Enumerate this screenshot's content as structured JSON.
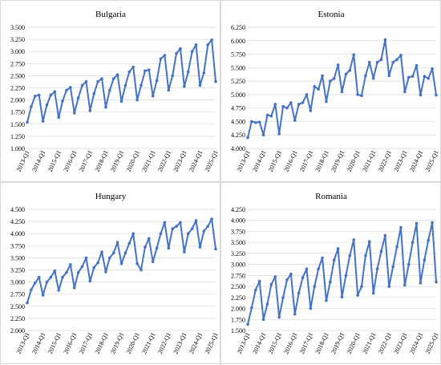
{
  "colors": {
    "line": "#4472C4",
    "grid": "#d9d9d9"
  },
  "chart_data": [
    {
      "type": "line",
      "title": "Bulgaria",
      "ylim": [
        1000,
        3500
      ],
      "yticks": [
        "1.000",
        "1.250",
        "1.500",
        "1.750",
        "2.000",
        "2.250",
        "2.500",
        "2.750",
        "3.000",
        "3.250",
        "3.500"
      ],
      "ytick_values": [
        1000,
        1250,
        1500,
        1750,
        2000,
        2250,
        2500,
        2750,
        3000,
        3250,
        3500
      ],
      "xticks": [
        "2013-Q1",
        "2014-Q1",
        "2015-Q1",
        "2016-Q1",
        "2017-Q1",
        "2018-Q1",
        "2019-Q1",
        "2020-Q1",
        "2021-Q1",
        "2022-Q1",
        "2023-Q1",
        "2024-Q1",
        "2025-Q1"
      ],
      "grid": true,
      "series": [
        {
          "values": [
            1540,
            1860,
            2080,
            2100,
            1560,
            1900,
            2100,
            2170,
            1640,
            1980,
            2200,
            2260,
            1730,
            2040,
            2300,
            2380,
            1780,
            2130,
            2380,
            2440,
            1850,
            2200,
            2440,
            2520,
            1970,
            2300,
            2580,
            2680,
            2000,
            2300,
            2600,
            2620,
            2080,
            2400,
            2850,
            2920,
            2200,
            2500,
            2960,
            3060,
            2280,
            2580,
            3000,
            3140,
            2300,
            2560,
            3140,
            3240,
            2380
          ]
        }
      ]
    },
    {
      "type": "line",
      "title": "Estonia",
      "ylim": [
        4000,
        6250
      ],
      "yticks": [
        "4.000",
        "4.250",
        "4.500",
        "4.750",
        "5.000",
        "5.250",
        "5.500",
        "5.750",
        "6.000",
        "6.250"
      ],
      "ytick_values": [
        4000,
        4250,
        4500,
        4750,
        5000,
        5250,
        5500,
        5750,
        6000,
        6250
      ],
      "xticks": [
        "2013-Q1",
        "2014-Q1",
        "2015-Q1",
        "2016-Q1",
        "2017-Q1",
        "2018-Q1",
        "2019-Q1",
        "2020-Q1",
        "2021-Q1",
        "2022-Q1",
        "2023-Q1",
        "2024-Q1",
        "2025-Q1"
      ],
      "grid": true,
      "series": [
        {
          "values": [
            4200,
            4500,
            4480,
            4490,
            4250,
            4620,
            4600,
            4820,
            4270,
            4780,
            4750,
            4850,
            4520,
            4820,
            4850,
            5000,
            4700,
            5150,
            5100,
            5350,
            4870,
            5250,
            5300,
            5550,
            5050,
            5380,
            5450,
            5740,
            5000,
            4980,
            5350,
            5600,
            5300,
            5600,
            5650,
            6020,
            5350,
            5600,
            5650,
            5730,
            5050,
            5320,
            5340,
            5540,
            4990,
            5340,
            5300,
            5480,
            4990
          ]
        }
      ]
    },
    {
      "type": "line",
      "title": "Hungary",
      "ylim": [
        2000,
        4500
      ],
      "yticks": [
        "2.000",
        "2.250",
        "2.500",
        "2.750",
        "3.000",
        "3.250",
        "3.500",
        "3.750",
        "4.000",
        "4.250",
        "4.500"
      ],
      "ytick_values": [
        2000,
        2250,
        2500,
        2750,
        3000,
        3250,
        3500,
        3750,
        4000,
        4250,
        4500
      ],
      "xticks": [
        "2013-Q1",
        "2014-Q1",
        "2015-Q1",
        "2016-Q1",
        "2017-Q1",
        "2018-Q1",
        "2019-Q1",
        "2020-Q1",
        "2021-Q1",
        "2022-Q1",
        "2023-Q1",
        "2024-Q1",
        "2025-Q1"
      ],
      "grid": true,
      "series": [
        {
          "values": [
            2570,
            2840,
            2980,
            3100,
            2730,
            3000,
            3100,
            3230,
            2830,
            3100,
            3200,
            3360,
            2880,
            3200,
            3320,
            3500,
            3020,
            3300,
            3400,
            3620,
            3210,
            3500,
            3600,
            3820,
            3380,
            3600,
            3800,
            4000,
            3380,
            3250,
            3720,
            3900,
            3420,
            3700,
            4000,
            4230,
            3700,
            4100,
            4150,
            4230,
            3620,
            4000,
            4100,
            4270,
            3720,
            4050,
            4150,
            4300,
            3680
          ]
        }
      ]
    },
    {
      "type": "line",
      "title": "Romania",
      "ylim": [
        1500,
        4250
      ],
      "yticks": [
        "1.500",
        "1.750",
        "2.000",
        "2.250",
        "2.500",
        "2.750",
        "3.000",
        "3.250",
        "3.500",
        "3.750",
        "4.000",
        "4.250"
      ],
      "ytick_values": [
        1500,
        1750,
        2000,
        2250,
        2500,
        2750,
        3000,
        3250,
        3500,
        3750,
        4000,
        4250
      ],
      "xticks": [
        "2013-Q1",
        "2014-Q1",
        "2015-Q1",
        "2016-Q1",
        "2017-Q1",
        "2018-Q1",
        "2019-Q1",
        "2020-Q1",
        "2021-Q1",
        "2022-Q1",
        "2023-Q1",
        "2024-Q1",
        "2025-Q1"
      ],
      "grid": true,
      "series": [
        {
          "values": [
            1640,
            2020,
            2420,
            2620,
            1750,
            2100,
            2550,
            2720,
            1800,
            2250,
            2650,
            2780,
            1870,
            2350,
            2700,
            2900,
            2000,
            2500,
            2900,
            3150,
            2180,
            2600,
            3100,
            3360,
            2260,
            2750,
            3200,
            3560,
            2300,
            2500,
            3200,
            3520,
            2350,
            2900,
            3300,
            3660,
            2500,
            2950,
            3400,
            3840,
            2530,
            3000,
            3500,
            3930,
            2580,
            3100,
            3550,
            3950,
            2600
          ]
        }
      ]
    }
  ]
}
